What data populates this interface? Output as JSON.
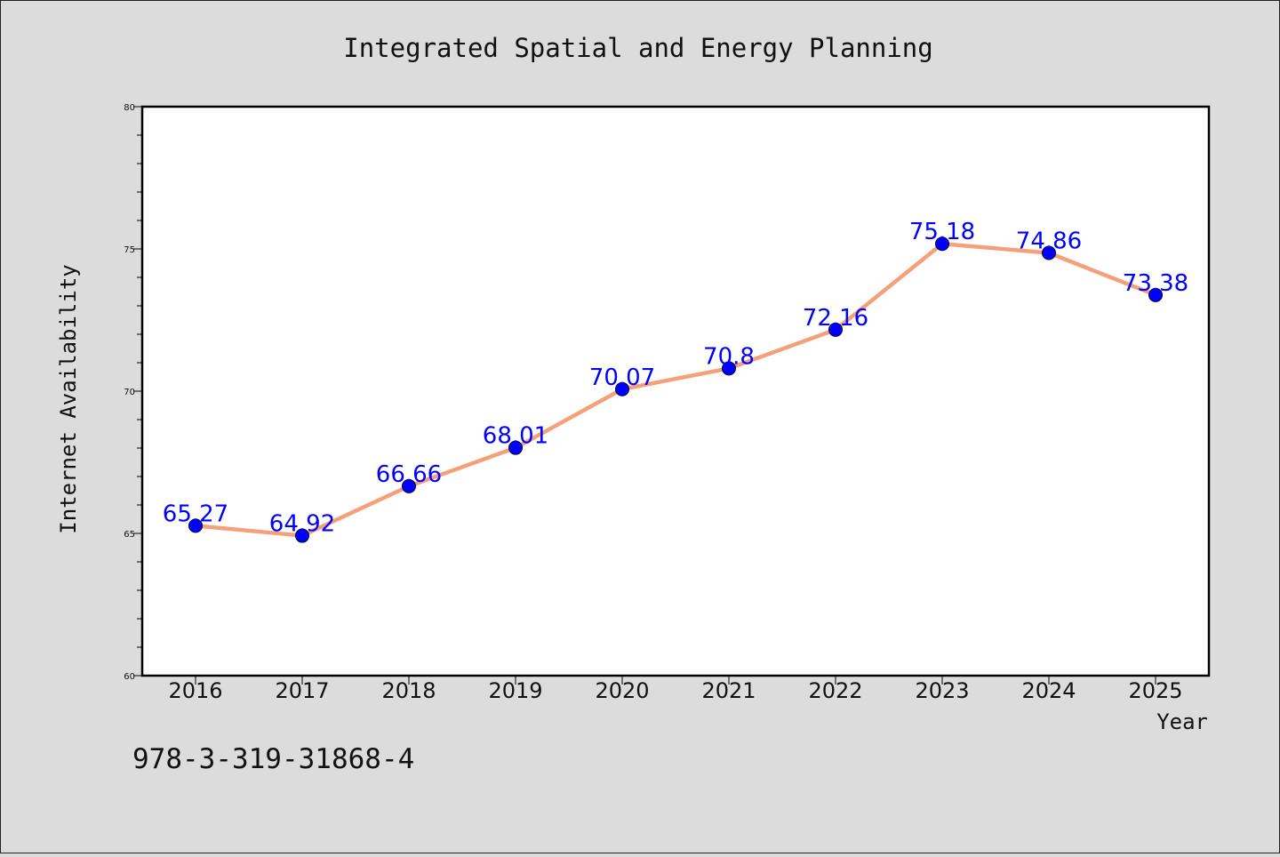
{
  "chart_data": {
    "type": "line",
    "title": "Integrated Spatial and Energy Planning",
    "xlabel": "Year",
    "ylabel": "Internet Availability",
    "x": [
      "2016",
      "2017",
      "2018",
      "2019",
      "2020",
      "2021",
      "2022",
      "2023",
      "2024",
      "2025"
    ],
    "series": [
      {
        "values": [
          65.27,
          64.92,
          66.66,
          68.01,
          70.07,
          70.8,
          72.16,
          75.18,
          74.86,
          73.38
        ],
        "data_labels": [
          "65.27",
          "64.92",
          "66.66",
          "68.01",
          "70.07",
          "70.8",
          "72.16",
          "75.18",
          "74.86",
          "73.38"
        ],
        "line_color": "#f4a07a",
        "marker_color": "#0000ff"
      }
    ],
    "ylim": [
      60,
      80
    ],
    "yticks": [
      "60",
      "65",
      "70",
      "75",
      "80"
    ],
    "grid": false,
    "legend": "none"
  },
  "footer": {
    "isbn": "978-3-319-31868-4"
  }
}
